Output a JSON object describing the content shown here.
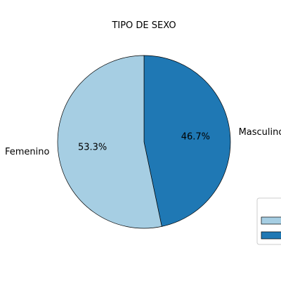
{
  "chart_data": {
    "type": "pie",
    "title": "TIPO DE SEXO",
    "slices": [
      {
        "label": "Masculino",
        "value": 46.7,
        "pct_label": "46.7%",
        "color": "#1f78b4"
      },
      {
        "label": "Femenino",
        "value": 53.3,
        "pct_label": "53.3%",
        "color": "#a6cee3"
      }
    ],
    "start_angle_deg": 90,
    "direction": "clockwise",
    "legend": {
      "placement": "right",
      "entries": [
        {
          "color": "#a6cee3"
        },
        {
          "color": "#1f78b4"
        }
      ]
    }
  }
}
